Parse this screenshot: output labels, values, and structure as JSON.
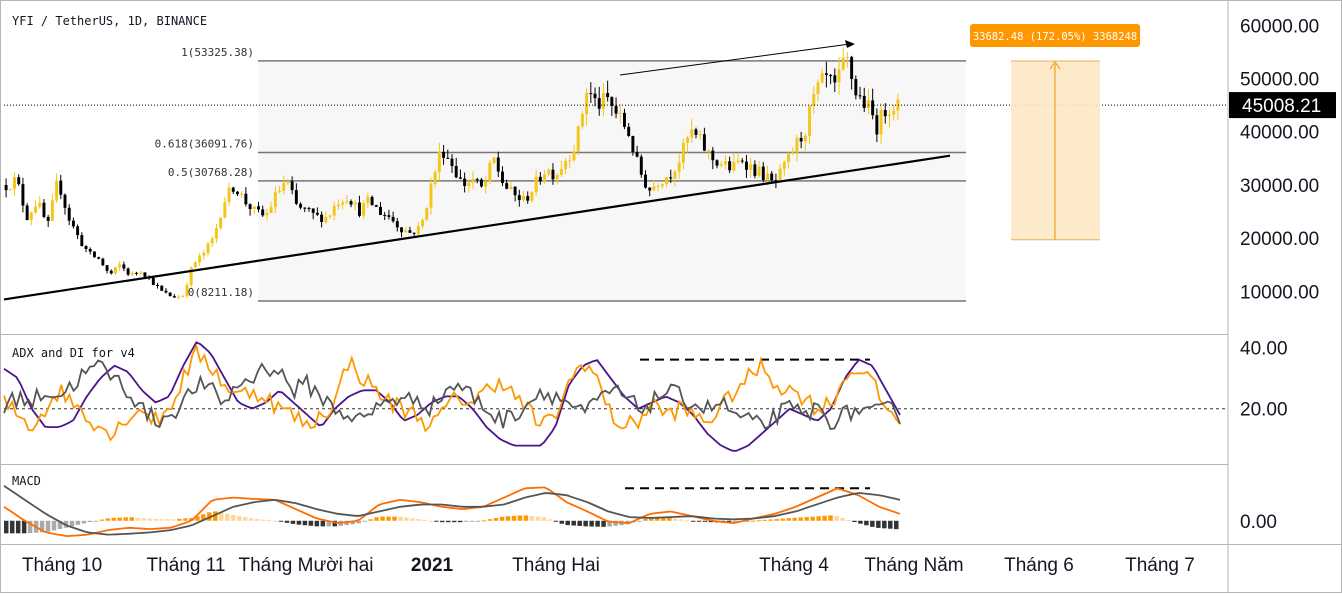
{
  "chart_data": [
    {
      "type": "candlestick",
      "title": "YFI / TetherUS, 1D, BINANCE",
      "y_ticks": [
        10000,
        20000,
        30000,
        40000,
        50000,
        60000
      ],
      "y_tick_labels": [
        "10000.00",
        "20000.00",
        "30000.00",
        "40000.00",
        "50000.00",
        "60000.00"
      ],
      "ylim": [
        2000,
        64000
      ],
      "x_labels": [
        "Tháng 10",
        "Tháng 11",
        "Tháng Mười hai",
        "2021",
        "Tháng Hai",
        "Tháng 4",
        "Tháng Năm",
        "Tháng 6",
        "Tháng 7"
      ],
      "current_price": 45008.21,
      "current_price_label": "45008.21",
      "fib_levels": [
        {
          "ratio": "1",
          "value": 53325.38,
          "label": "1(53325.38)"
        },
        {
          "ratio": "0.618",
          "value": 36091.76,
          "label": "0.618(36091.76)"
        },
        {
          "ratio": "0.5",
          "value": 30768.28,
          "label": "0.5(30768.28)"
        },
        {
          "ratio": "0",
          "value": 8211.18,
          "label": "0(8211.18)"
        }
      ],
      "trendline": {
        "start": 8500,
        "end": 35500
      },
      "measure_box": {
        "low": 19700,
        "high": 53300,
        "label": "33682.48 (172.05%) 3368248"
      },
      "close_path": [
        30000,
        31000,
        24000,
        27000,
        22000,
        31000,
        24000,
        20000,
        17000,
        16000,
        13000,
        15000,
        13000,
        14000,
        12000,
        10000,
        9000,
        9000,
        15000,
        17000,
        20000,
        27000,
        30000,
        27000,
        25000,
        24000,
        28000,
        31000,
        26000,
        25000,
        24000,
        24000,
        27000,
        28000,
        25000,
        27000,
        25000,
        24000,
        22000,
        21000,
        22000,
        30000,
        37000,
        34000,
        30000,
        31000,
        29000,
        35000,
        30000,
        28000,
        27000,
        30000,
        33000,
        32000,
        35000,
        38000,
        48000,
        45000,
        46000,
        43000,
        40000,
        33000,
        29000,
        31000,
        32000,
        35000,
        40000,
        38000,
        35000,
        34000,
        33000,
        35000,
        33000,
        32000,
        30000,
        33000,
        37000,
        40000,
        47000,
        50000,
        48000,
        54000,
        47000,
        45000,
        41000,
        45000,
        45000
      ],
      "candle_count": 213
    },
    {
      "type": "line",
      "title": "ADX and DI for v4",
      "y_ticks": [
        20,
        40
      ],
      "y_tick_labels": [
        "20.00",
        "40.00"
      ],
      "ylim": [
        2,
        44
      ],
      "reference_level": 20,
      "resistance_level": 36,
      "series": [
        {
          "key": "adx",
          "color": "#4a148c",
          "path": [
            33,
            30,
            20,
            14,
            14,
            16,
            24,
            30,
            34,
            32,
            26,
            22,
            24,
            34,
            42,
            38,
            30,
            22,
            20,
            22,
            26,
            22,
            18,
            14,
            20,
            24,
            26,
            26,
            22,
            16,
            18,
            22,
            24,
            24,
            20,
            14,
            10,
            8,
            8,
            8,
            14,
            28,
            34,
            36,
            30,
            24,
            20,
            22,
            24,
            22,
            18,
            12,
            8,
            6,
            8,
            12,
            16,
            20,
            18,
            16,
            20,
            30,
            36,
            34,
            26,
            18
          ]
        },
        {
          "key": "plus-di",
          "color": "#ff9800",
          "path": [
            22,
            18,
            14,
            20,
            26,
            22,
            18,
            14,
            12,
            18,
            20,
            16,
            20,
            30,
            38,
            34,
            28,
            24,
            26,
            24,
            20,
            18,
            14,
            18,
            22,
            36,
            30,
            26,
            22,
            20,
            18,
            14,
            20,
            24,
            22,
            26,
            30,
            24,
            20,
            14,
            18,
            28,
            36,
            30,
            18,
            14,
            16,
            22,
            18,
            20,
            18,
            16,
            20,
            26,
            30,
            34,
            28,
            26,
            24,
            20,
            22,
            30,
            34,
            28,
            20,
            16
          ]
        },
        {
          "key": "minus-di",
          "color": "#555555",
          "path": [
            20,
            24,
            22,
            26,
            24,
            28,
            32,
            34,
            30,
            26,
            20,
            16,
            18,
            22,
            28,
            26,
            22,
            28,
            30,
            34,
            32,
            26,
            28,
            24,
            20,
            18,
            16,
            20,
            24,
            22,
            24,
            20,
            26,
            28,
            24,
            20,
            16,
            18,
            22,
            26,
            24,
            22,
            18,
            22,
            26,
            24,
            20,
            22,
            26,
            24,
            22,
            20,
            22,
            18,
            16,
            14,
            18,
            20,
            18,
            20,
            16,
            18,
            20,
            18,
            20,
            18
          ]
        }
      ]
    },
    {
      "type": "bar+line",
      "title": "MACD",
      "y_ticks": [
        0
      ],
      "y_tick_labels": [
        "0.00"
      ],
      "ylim": [
        -5000,
        12000
      ],
      "resistance_level": 7000,
      "series": [
        {
          "key": "macd",
          "color": "#ff6d00",
          "path": [
            3000,
            0,
            -2500,
            -3300,
            -3000,
            -2000,
            -1500,
            -1800,
            -1500,
            0,
            4500,
            5000,
            4700,
            4500,
            2500,
            500,
            -500,
            0,
            3500,
            4500,
            4000,
            3000,
            2500,
            3000,
            5000,
            7000,
            7200,
            4000,
            2000,
            -200,
            -500,
            1500,
            2000,
            1000,
            0,
            -500,
            500,
            1500,
            3000,
            5000,
            7000,
            5500,
            3000,
            1500
          ]
        },
        {
          "key": "signal",
          "color": "#555555",
          "path": [
            7500,
            4500,
            1500,
            -1000,
            -2500,
            -3000,
            -2800,
            -2500,
            -2000,
            -1000,
            1000,
            3000,
            4000,
            4500,
            3800,
            2500,
            1500,
            1000,
            2000,
            3000,
            3500,
            3500,
            3000,
            3000,
            3500,
            5000,
            6000,
            5500,
            4000,
            2000,
            800,
            600,
            800,
            1000,
            500,
            300,
            500,
            1000,
            2000,
            3500,
            5000,
            6000,
            5500,
            4500
          ]
        }
      ]
    }
  ]
}
